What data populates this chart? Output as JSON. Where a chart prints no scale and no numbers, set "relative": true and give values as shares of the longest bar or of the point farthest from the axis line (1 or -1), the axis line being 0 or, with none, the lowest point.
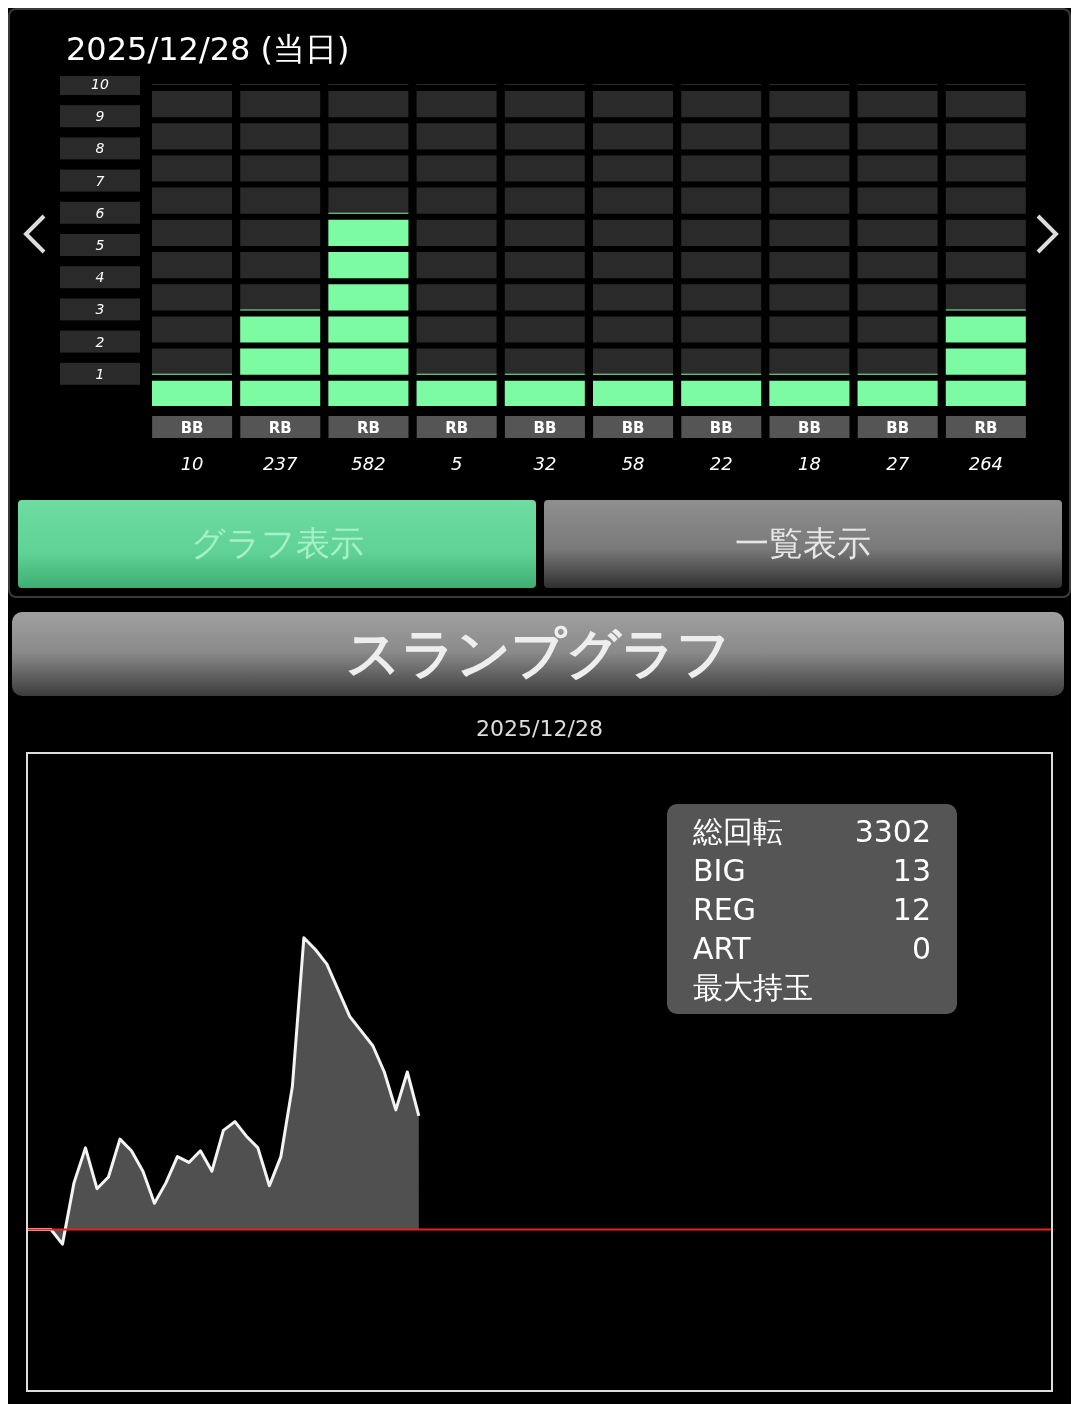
{
  "chart_data": [
    {
      "type": "bar",
      "title": "2025/12/28 (当日)",
      "categories": [
        "10",
        "237",
        "582",
        "5",
        "32",
        "58",
        "22",
        "18",
        "27",
        "264"
      ],
      "values": [
        1,
        3,
        6,
        1,
        1,
        1,
        1,
        1,
        1,
        3
      ],
      "color": "#7dfba3",
      "ylim": [
        0,
        10
      ],
      "yticks": [
        1,
        2,
        3,
        4,
        5,
        6,
        7,
        8,
        9,
        10
      ],
      "grid": "y",
      "annotations": [
        "BB",
        "RB",
        "RB",
        "RB",
        "BB",
        "BB",
        "BB",
        "BB",
        "BB",
        "RB",
        "グラフ表示",
        "一覧表示"
      ]
    },
    {
      "type": "area",
      "title": "スランプグラフ",
      "subtitle": "2025/12/28",
      "relative": true,
      "color": "#f4f4f4",
      "categories": [
        null,
        null,
        null,
        null,
        null,
        null,
        null,
        null,
        null,
        null,
        null,
        null,
        null,
        null,
        null,
        null,
        null,
        null,
        null,
        null,
        null,
        null,
        null,
        null,
        null,
        null,
        null,
        null,
        null,
        null,
        null,
        null,
        null,
        null,
        null,
        null,
        null,
        null,
        null,
        null,
        null,
        null,
        null,
        null,
        null,
        null,
        null,
        null,
        null,
        null,
        null,
        null,
        null,
        null,
        null,
        null,
        null,
        null,
        null,
        null,
        null,
        null,
        null,
        null,
        null,
        null,
        null,
        null,
        null,
        null,
        null,
        null,
        null,
        null,
        null,
        null,
        null,
        null,
        null,
        null,
        null,
        null,
        null,
        null,
        null,
        null,
        null,
        null,
        null,
        null
      ],
      "values": [
        0,
        0,
        0,
        -0.05,
        0.16,
        0.28,
        0.14,
        0.18,
        0.31,
        0.27,
        0.2,
        0.09,
        0.16,
        0.25,
        0.23,
        0.27,
        0.2,
        0.34,
        0.37,
        0.32,
        0.28,
        0.15,
        0.25,
        0.49,
        1,
        0.96,
        0.91,
        0.82,
        0.73,
        0.68,
        0.63,
        0.54,
        0.41,
        0.54,
        0.39,
        null,
        null,
        null,
        null,
        null,
        null,
        null,
        null,
        null,
        null,
        null,
        null,
        null,
        null,
        null,
        null,
        null,
        null,
        null,
        null,
        null,
        null,
        null,
        null,
        null,
        null,
        null,
        null,
        null,
        null,
        null,
        null,
        null,
        null,
        null,
        null,
        null,
        null,
        null,
        null,
        null,
        null,
        null,
        null,
        null,
        null,
        null,
        null,
        null,
        null,
        null,
        null,
        null,
        null,
        null
      ],
      "ref_lines": [
        {
          "axis": "y",
          "value": 0,
          "color": "#e8231c"
        }
      ],
      "annotations": [
        "総回転",
        "3302",
        "BIG",
        "13",
        "REG",
        "12",
        "ART",
        "0",
        "最大持玉"
      ]
    }
  ]
}
